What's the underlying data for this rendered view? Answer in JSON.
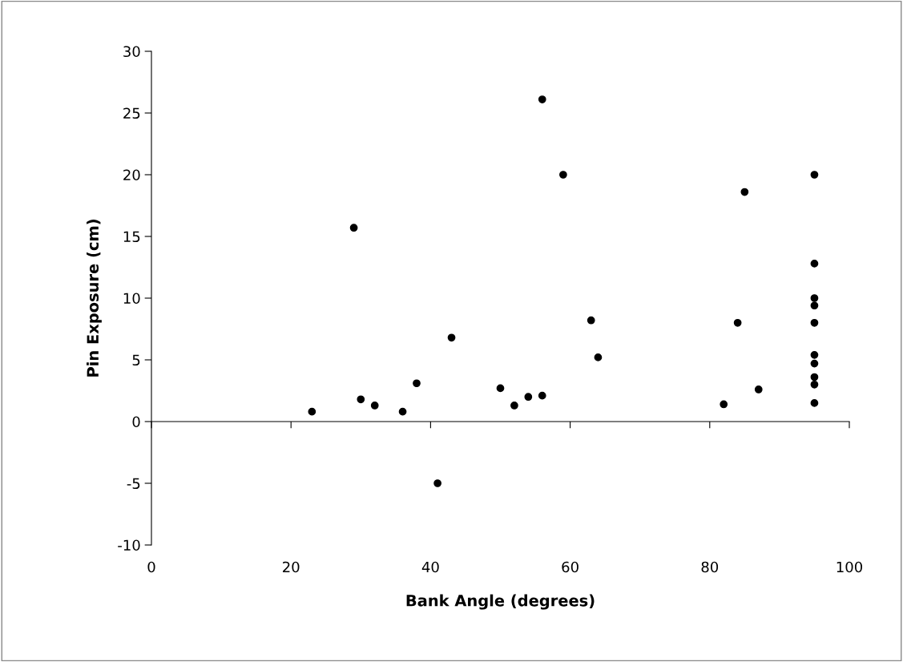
{
  "chart_data": {
    "type": "scatter",
    "xlabel": "Bank Angle (degrees)",
    "ylabel": "Pin Exposure (cm)",
    "x": [
      23,
      29,
      30,
      32,
      36,
      38,
      41,
      43,
      50,
      52,
      54,
      56,
      56,
      59,
      63,
      64,
      82,
      84,
      85,
      87,
      95,
      95,
      95,
      95,
      95,
      95,
      95,
      95,
      95,
      95
    ],
    "series": [
      {
        "color": "#000000",
        "values": [
          0.8,
          15.7,
          1.8,
          1.3,
          0.8,
          3.1,
          -5,
          6.8,
          2.7,
          1.3,
          2.0,
          2.1,
          26.1,
          20,
          8.2,
          5.2,
          1.4,
          8.0,
          18.6,
          2.6,
          20,
          12.8,
          10,
          9.4,
          8.0,
          5.4,
          4.7,
          3.6,
          3.0,
          1.5
        ]
      }
    ],
    "xlim": [
      0,
      100
    ],
    "xticks": [
      0,
      20,
      40,
      60,
      80,
      100
    ],
    "ylim": [
      -10,
      30
    ],
    "yticks": [
      -10,
      -5,
      0,
      5,
      10,
      15,
      20,
      25,
      30
    ],
    "marker": "circle"
  }
}
